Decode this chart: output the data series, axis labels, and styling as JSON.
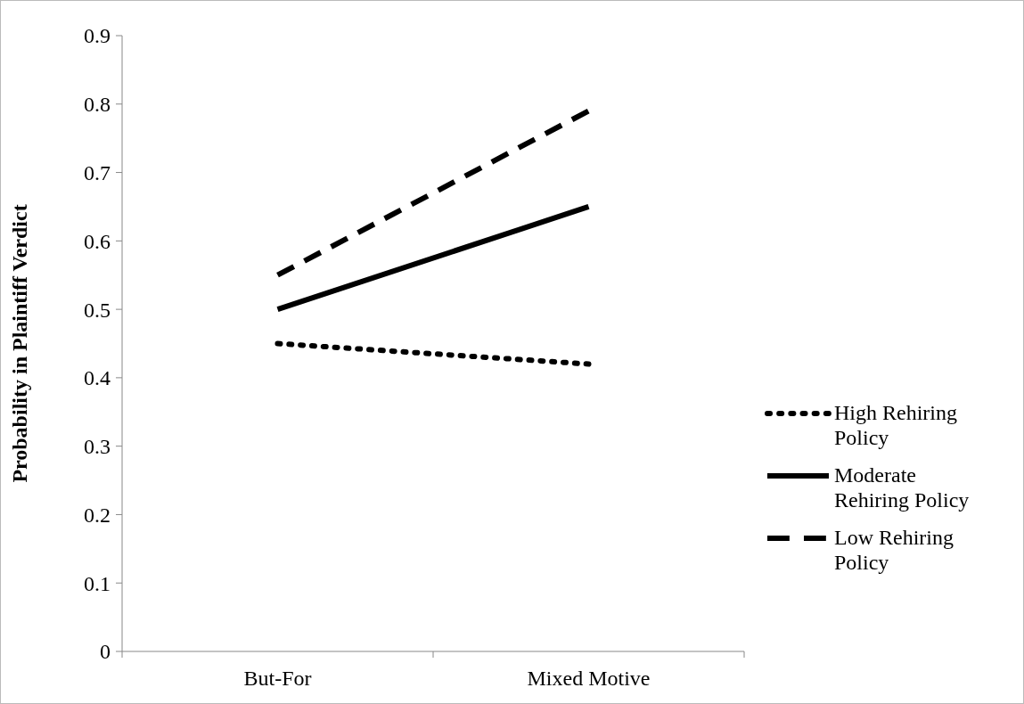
{
  "chart_data": {
    "type": "line",
    "ylabel": "Probability in Plaintiff Verdict",
    "categories": [
      "But-For",
      "Mixed Motive"
    ],
    "series": [
      {
        "name": "High Rehiring Policy",
        "color": "#000000",
        "line_style": "dotted",
        "values": [
          0.45,
          0.42
        ]
      },
      {
        "name": "Moderate Rehiring Policy",
        "color": "#000000",
        "line_style": "solid",
        "values": [
          0.5,
          0.65
        ]
      },
      {
        "name": "Low Rehiring Policy",
        "color": "#000000",
        "line_style": "dashed",
        "values": [
          0.55,
          0.79
        ]
      }
    ],
    "ylim": [
      0,
      0.9
    ],
    "yticks": [
      0,
      0.1,
      0.2,
      0.3,
      0.4,
      0.5,
      0.6,
      0.7,
      0.8,
      0.9
    ],
    "grid": false,
    "legend": "right",
    "marker": "none"
  }
}
